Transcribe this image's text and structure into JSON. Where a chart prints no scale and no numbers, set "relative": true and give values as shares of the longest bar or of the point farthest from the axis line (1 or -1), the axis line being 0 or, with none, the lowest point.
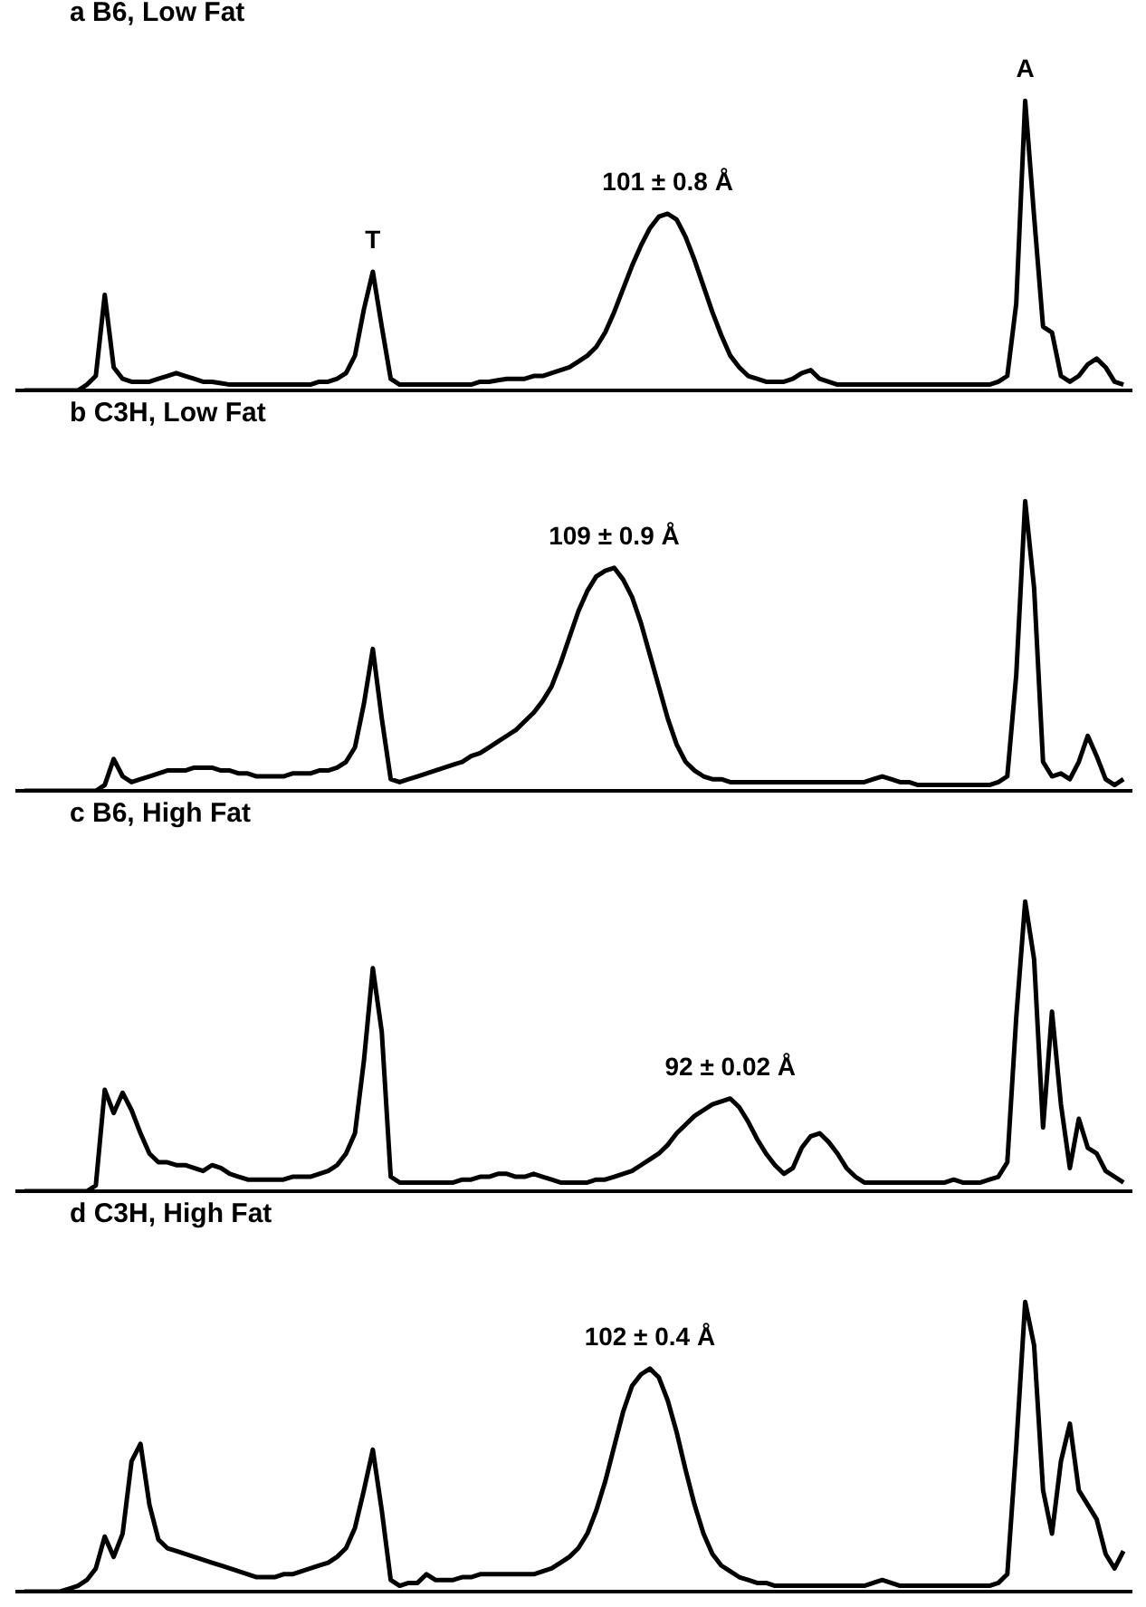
{
  "chart_data": [
    {
      "type": "line",
      "title": "a  B6, Low Fat",
      "relative": true,
      "color": "#000000",
      "grid": false,
      "categories": [
        null,
        null,
        null,
        null,
        null,
        null,
        null,
        null,
        null,
        null,
        null,
        null,
        null,
        null,
        null,
        null,
        null,
        null,
        null,
        null,
        null,
        null,
        null,
        null,
        null,
        null,
        null,
        null,
        null,
        null,
        null,
        null,
        null,
        null,
        null,
        null,
        null,
        null,
        null,
        null,
        null,
        null,
        null,
        null,
        null,
        null,
        null,
        null,
        null,
        null,
        null,
        null,
        null,
        null,
        null,
        null,
        null,
        null,
        null,
        null,
        null,
        null,
        null,
        null,
        null,
        null,
        null,
        null,
        null,
        null,
        null,
        null,
        null,
        null,
        null,
        null,
        null,
        null,
        null,
        null,
        null,
        null,
        null,
        null,
        null,
        null,
        null,
        null,
        null,
        null,
        null,
        null,
        null,
        null,
        null,
        null,
        null,
        null,
        null,
        null,
        null,
        null,
        null,
        null,
        null,
        null,
        null,
        null,
        null,
        null,
        null,
        null,
        null,
        null,
        null,
        null,
        null,
        null,
        null,
        null,
        null,
        null,
        null,
        null
      ],
      "values": [
        0,
        0,
        0,
        0,
        0,
        0,
        0,
        0.02,
        0.05,
        0.33,
        0.08,
        0.04,
        0.03,
        0.03,
        0.03,
        0.04,
        0.05,
        0.06,
        0.05,
        0.04,
        0.03,
        0.03,
        0.025,
        0.02,
        0.02,
        0.02,
        0.02,
        0.02,
        0.02,
        0.02,
        0.02,
        0.02,
        0.02,
        0.03,
        0.03,
        0.04,
        0.06,
        0.12,
        0.28,
        0.41,
        0.22,
        0.04,
        0.02,
        0.02,
        0.02,
        0.02,
        0.02,
        0.02,
        0.02,
        0.02,
        0.02,
        0.03,
        0.03,
        0.035,
        0.04,
        0.04,
        0.04,
        0.05,
        0.05,
        0.06,
        0.07,
        0.08,
        0.1,
        0.12,
        0.15,
        0.2,
        0.27,
        0.35,
        0.43,
        0.5,
        0.56,
        0.6,
        0.61,
        0.59,
        0.53,
        0.45,
        0.36,
        0.27,
        0.19,
        0.12,
        0.08,
        0.05,
        0.04,
        0.03,
        0.03,
        0.03,
        0.04,
        0.06,
        0.07,
        0.04,
        0.03,
        0.02,
        0.02,
        0.02,
        0.02,
        0.02,
        0.02,
        0.02,
        0.02,
        0.02,
        0.02,
        0.02,
        0.02,
        0.02,
        0.02,
        0.02,
        0.02,
        0.02,
        0.02,
        0.03,
        0.05,
        0.3,
        1,
        0.6,
        0.22,
        0.2,
        0.05,
        0.03,
        0.05,
        0.09,
        0.11,
        0.08,
        0.03,
        0.02
      ],
      "annotations": [
        {
          "text": "T",
          "y": 0.41
        },
        {
          "text": "101 ± 0.8 Å",
          "y": 0.61
        },
        {
          "text": "A",
          "y": 1
        }
      ]
    },
    {
      "type": "line",
      "title": "b  C3H, Low Fat",
      "relative": true,
      "color": "#000000",
      "grid": false,
      "categories": [
        null,
        null,
        null,
        null,
        null,
        null,
        null,
        null,
        null,
        null,
        null,
        null,
        null,
        null,
        null,
        null,
        null,
        null,
        null,
        null,
        null,
        null,
        null,
        null,
        null,
        null,
        null,
        null,
        null,
        null,
        null,
        null,
        null,
        null,
        null,
        null,
        null,
        null,
        null,
        null,
        null,
        null,
        null,
        null,
        null,
        null,
        null,
        null,
        null,
        null,
        null,
        null,
        null,
        null,
        null,
        null,
        null,
        null,
        null,
        null,
        null,
        null,
        null,
        null,
        null,
        null,
        null,
        null,
        null,
        null,
        null,
        null,
        null,
        null,
        null,
        null,
        null,
        null,
        null,
        null,
        null,
        null,
        null,
        null,
        null,
        null,
        null,
        null,
        null,
        null,
        null,
        null,
        null,
        null,
        null,
        null,
        null,
        null,
        null,
        null,
        null,
        null,
        null,
        null,
        null,
        null,
        null,
        null,
        null,
        null,
        null,
        null,
        null,
        null,
        null,
        null,
        null,
        null,
        null,
        null,
        null,
        null,
        null,
        null
      ],
      "values": [
        0,
        0,
        0,
        0,
        0,
        0,
        0,
        0,
        0,
        0.02,
        0.11,
        0.05,
        0.03,
        0.04,
        0.05,
        0.06,
        0.07,
        0.07,
        0.07,
        0.08,
        0.08,
        0.08,
        0.07,
        0.07,
        0.06,
        0.06,
        0.05,
        0.05,
        0.05,
        0.05,
        0.06,
        0.06,
        0.06,
        0.07,
        0.07,
        0.08,
        0.1,
        0.15,
        0.3,
        0.49,
        0.25,
        0.04,
        0.03,
        0.04,
        0.05,
        0.06,
        0.07,
        0.08,
        0.09,
        0.1,
        0.12,
        0.13,
        0.15,
        0.17,
        0.19,
        0.21,
        0.24,
        0.27,
        0.31,
        0.36,
        0.44,
        0.53,
        0.62,
        0.69,
        0.74,
        0.76,
        0.77,
        0.73,
        0.67,
        0.58,
        0.47,
        0.36,
        0.25,
        0.16,
        0.1,
        0.07,
        0.05,
        0.04,
        0.04,
        0.03,
        0.03,
        0.03,
        0.03,
        0.03,
        0.03,
        0.03,
        0.03,
        0.03,
        0.03,
        0.03,
        0.03,
        0.03,
        0.03,
        0.03,
        0.03,
        0.04,
        0.05,
        0.04,
        0.03,
        0.03,
        0.02,
        0.02,
        0.02,
        0.02,
        0.02,
        0.02,
        0.02,
        0.02,
        0.02,
        0.03,
        0.05,
        0.4,
        1,
        0.7,
        0.1,
        0.05,
        0.06,
        0.04,
        0.1,
        0.19,
        0.12,
        0.04,
        0.02,
        0.04
      ],
      "annotations": [
        {
          "text": "109 ± 0.9 Å",
          "y": 0.77
        }
      ]
    },
    {
      "type": "line",
      "title": "c  B6, High Fat",
      "relative": true,
      "color": "#000000",
      "grid": false,
      "categories": [
        null,
        null,
        null,
        null,
        null,
        null,
        null,
        null,
        null,
        null,
        null,
        null,
        null,
        null,
        null,
        null,
        null,
        null,
        null,
        null,
        null,
        null,
        null,
        null,
        null,
        null,
        null,
        null,
        null,
        null,
        null,
        null,
        null,
        null,
        null,
        null,
        null,
        null,
        null,
        null,
        null,
        null,
        null,
        null,
        null,
        null,
        null,
        null,
        null,
        null,
        null,
        null,
        null,
        null,
        null,
        null,
        null,
        null,
        null,
        null,
        null,
        null,
        null,
        null,
        null,
        null,
        null,
        null,
        null,
        null,
        null,
        null,
        null,
        null,
        null,
        null,
        null,
        null,
        null,
        null,
        null,
        null,
        null,
        null,
        null,
        null,
        null,
        null,
        null,
        null,
        null,
        null,
        null,
        null,
        null,
        null,
        null,
        null,
        null,
        null,
        null,
        null,
        null,
        null,
        null,
        null,
        null,
        null,
        null,
        null,
        null,
        null,
        null,
        null,
        null,
        null,
        null,
        null,
        null,
        null,
        null,
        null,
        null,
        null
      ],
      "values": [
        0,
        0,
        0,
        0,
        0,
        0,
        0,
        0,
        0.02,
        0.35,
        0.27,
        0.34,
        0.28,
        0.2,
        0.13,
        0.1,
        0.1,
        0.09,
        0.09,
        0.08,
        0.07,
        0.09,
        0.08,
        0.06,
        0.05,
        0.04,
        0.04,
        0.04,
        0.04,
        0.04,
        0.05,
        0.05,
        0.05,
        0.06,
        0.07,
        0.09,
        0.13,
        0.2,
        0.45,
        0.77,
        0.55,
        0.05,
        0.03,
        0.03,
        0.03,
        0.03,
        0.03,
        0.03,
        0.03,
        0.04,
        0.04,
        0.05,
        0.05,
        0.06,
        0.06,
        0.05,
        0.05,
        0.06,
        0.05,
        0.04,
        0.03,
        0.03,
        0.03,
        0.03,
        0.04,
        0.04,
        0.05,
        0.06,
        0.07,
        0.09,
        0.11,
        0.13,
        0.16,
        0.2,
        0.23,
        0.26,
        0.28,
        0.3,
        0.31,
        0.32,
        0.29,
        0.24,
        0.18,
        0.13,
        0.09,
        0.06,
        0.08,
        0.15,
        0.19,
        0.2,
        0.17,
        0.13,
        0.08,
        0.05,
        0.03,
        0.03,
        0.03,
        0.03,
        0.03,
        0.03,
        0.03,
        0.03,
        0.03,
        0.03,
        0.04,
        0.03,
        0.03,
        0.03,
        0.04,
        0.05,
        0.1,
        0.6,
        1,
        0.8,
        0.22,
        0.62,
        0.3,
        0.08,
        0.25,
        0.15,
        0.13,
        0.07,
        0.05,
        0.03
      ],
      "annotations": [
        {
          "text": "92 ± 0.02 Å",
          "y": 0.32
        }
      ]
    },
    {
      "type": "line",
      "title": "d  C3H, High Fat",
      "relative": true,
      "color": "#000000",
      "grid": false,
      "categories": [
        null,
        null,
        null,
        null,
        null,
        null,
        null,
        null,
        null,
        null,
        null,
        null,
        null,
        null,
        null,
        null,
        null,
        null,
        null,
        null,
        null,
        null,
        null,
        null,
        null,
        null,
        null,
        null,
        null,
        null,
        null,
        null,
        null,
        null,
        null,
        null,
        null,
        null,
        null,
        null,
        null,
        null,
        null,
        null,
        null,
        null,
        null,
        null,
        null,
        null,
        null,
        null,
        null,
        null,
        null,
        null,
        null,
        null,
        null,
        null,
        null,
        null,
        null,
        null,
        null,
        null,
        null,
        null,
        null,
        null,
        null,
        null,
        null,
        null,
        null,
        null,
        null,
        null,
        null,
        null,
        null,
        null,
        null,
        null,
        null,
        null,
        null,
        null,
        null,
        null,
        null,
        null,
        null,
        null,
        null,
        null,
        null,
        null,
        null,
        null,
        null,
        null,
        null,
        null,
        null,
        null,
        null,
        null,
        null,
        null,
        null,
        null,
        null,
        null,
        null,
        null,
        null,
        null,
        null,
        null,
        null,
        null,
        null,
        null
      ],
      "values": [
        0,
        0,
        0,
        0,
        0,
        0.01,
        0.02,
        0.04,
        0.08,
        0.19,
        0.12,
        0.2,
        0.45,
        0.51,
        0.3,
        0.18,
        0.15,
        0.14,
        0.13,
        0.12,
        0.11,
        0.1,
        0.09,
        0.08,
        0.07,
        0.06,
        0.05,
        0.05,
        0.05,
        0.06,
        0.06,
        0.07,
        0.08,
        0.09,
        0.1,
        0.12,
        0.15,
        0.22,
        0.35,
        0.49,
        0.28,
        0.04,
        0.02,
        0.03,
        0.03,
        0.06,
        0.04,
        0.04,
        0.04,
        0.05,
        0.05,
        0.06,
        0.06,
        0.06,
        0.06,
        0.06,
        0.06,
        0.06,
        0.07,
        0.08,
        0.1,
        0.12,
        0.15,
        0.2,
        0.28,
        0.38,
        0.5,
        0.62,
        0.71,
        0.75,
        0.77,
        0.74,
        0.66,
        0.55,
        0.42,
        0.3,
        0.2,
        0.13,
        0.09,
        0.07,
        0.05,
        0.04,
        0.03,
        0.03,
        0.02,
        0.02,
        0.02,
        0.02,
        0.02,
        0.02,
        0.02,
        0.02,
        0.02,
        0.02,
        0.02,
        0.03,
        0.04,
        0.03,
        0.02,
        0.02,
        0.02,
        0.02,
        0.02,
        0.02,
        0.02,
        0.02,
        0.02,
        0.02,
        0.02,
        0.03,
        0.06,
        0.5,
        1,
        0.85,
        0.35,
        0.2,
        0.45,
        0.58,
        0.35,
        0.3,
        0.25,
        0.13,
        0.08,
        0.14
      ],
      "annotations": [
        {
          "text": "102 ± 0.4 Å",
          "y": 0.77
        }
      ]
    }
  ]
}
